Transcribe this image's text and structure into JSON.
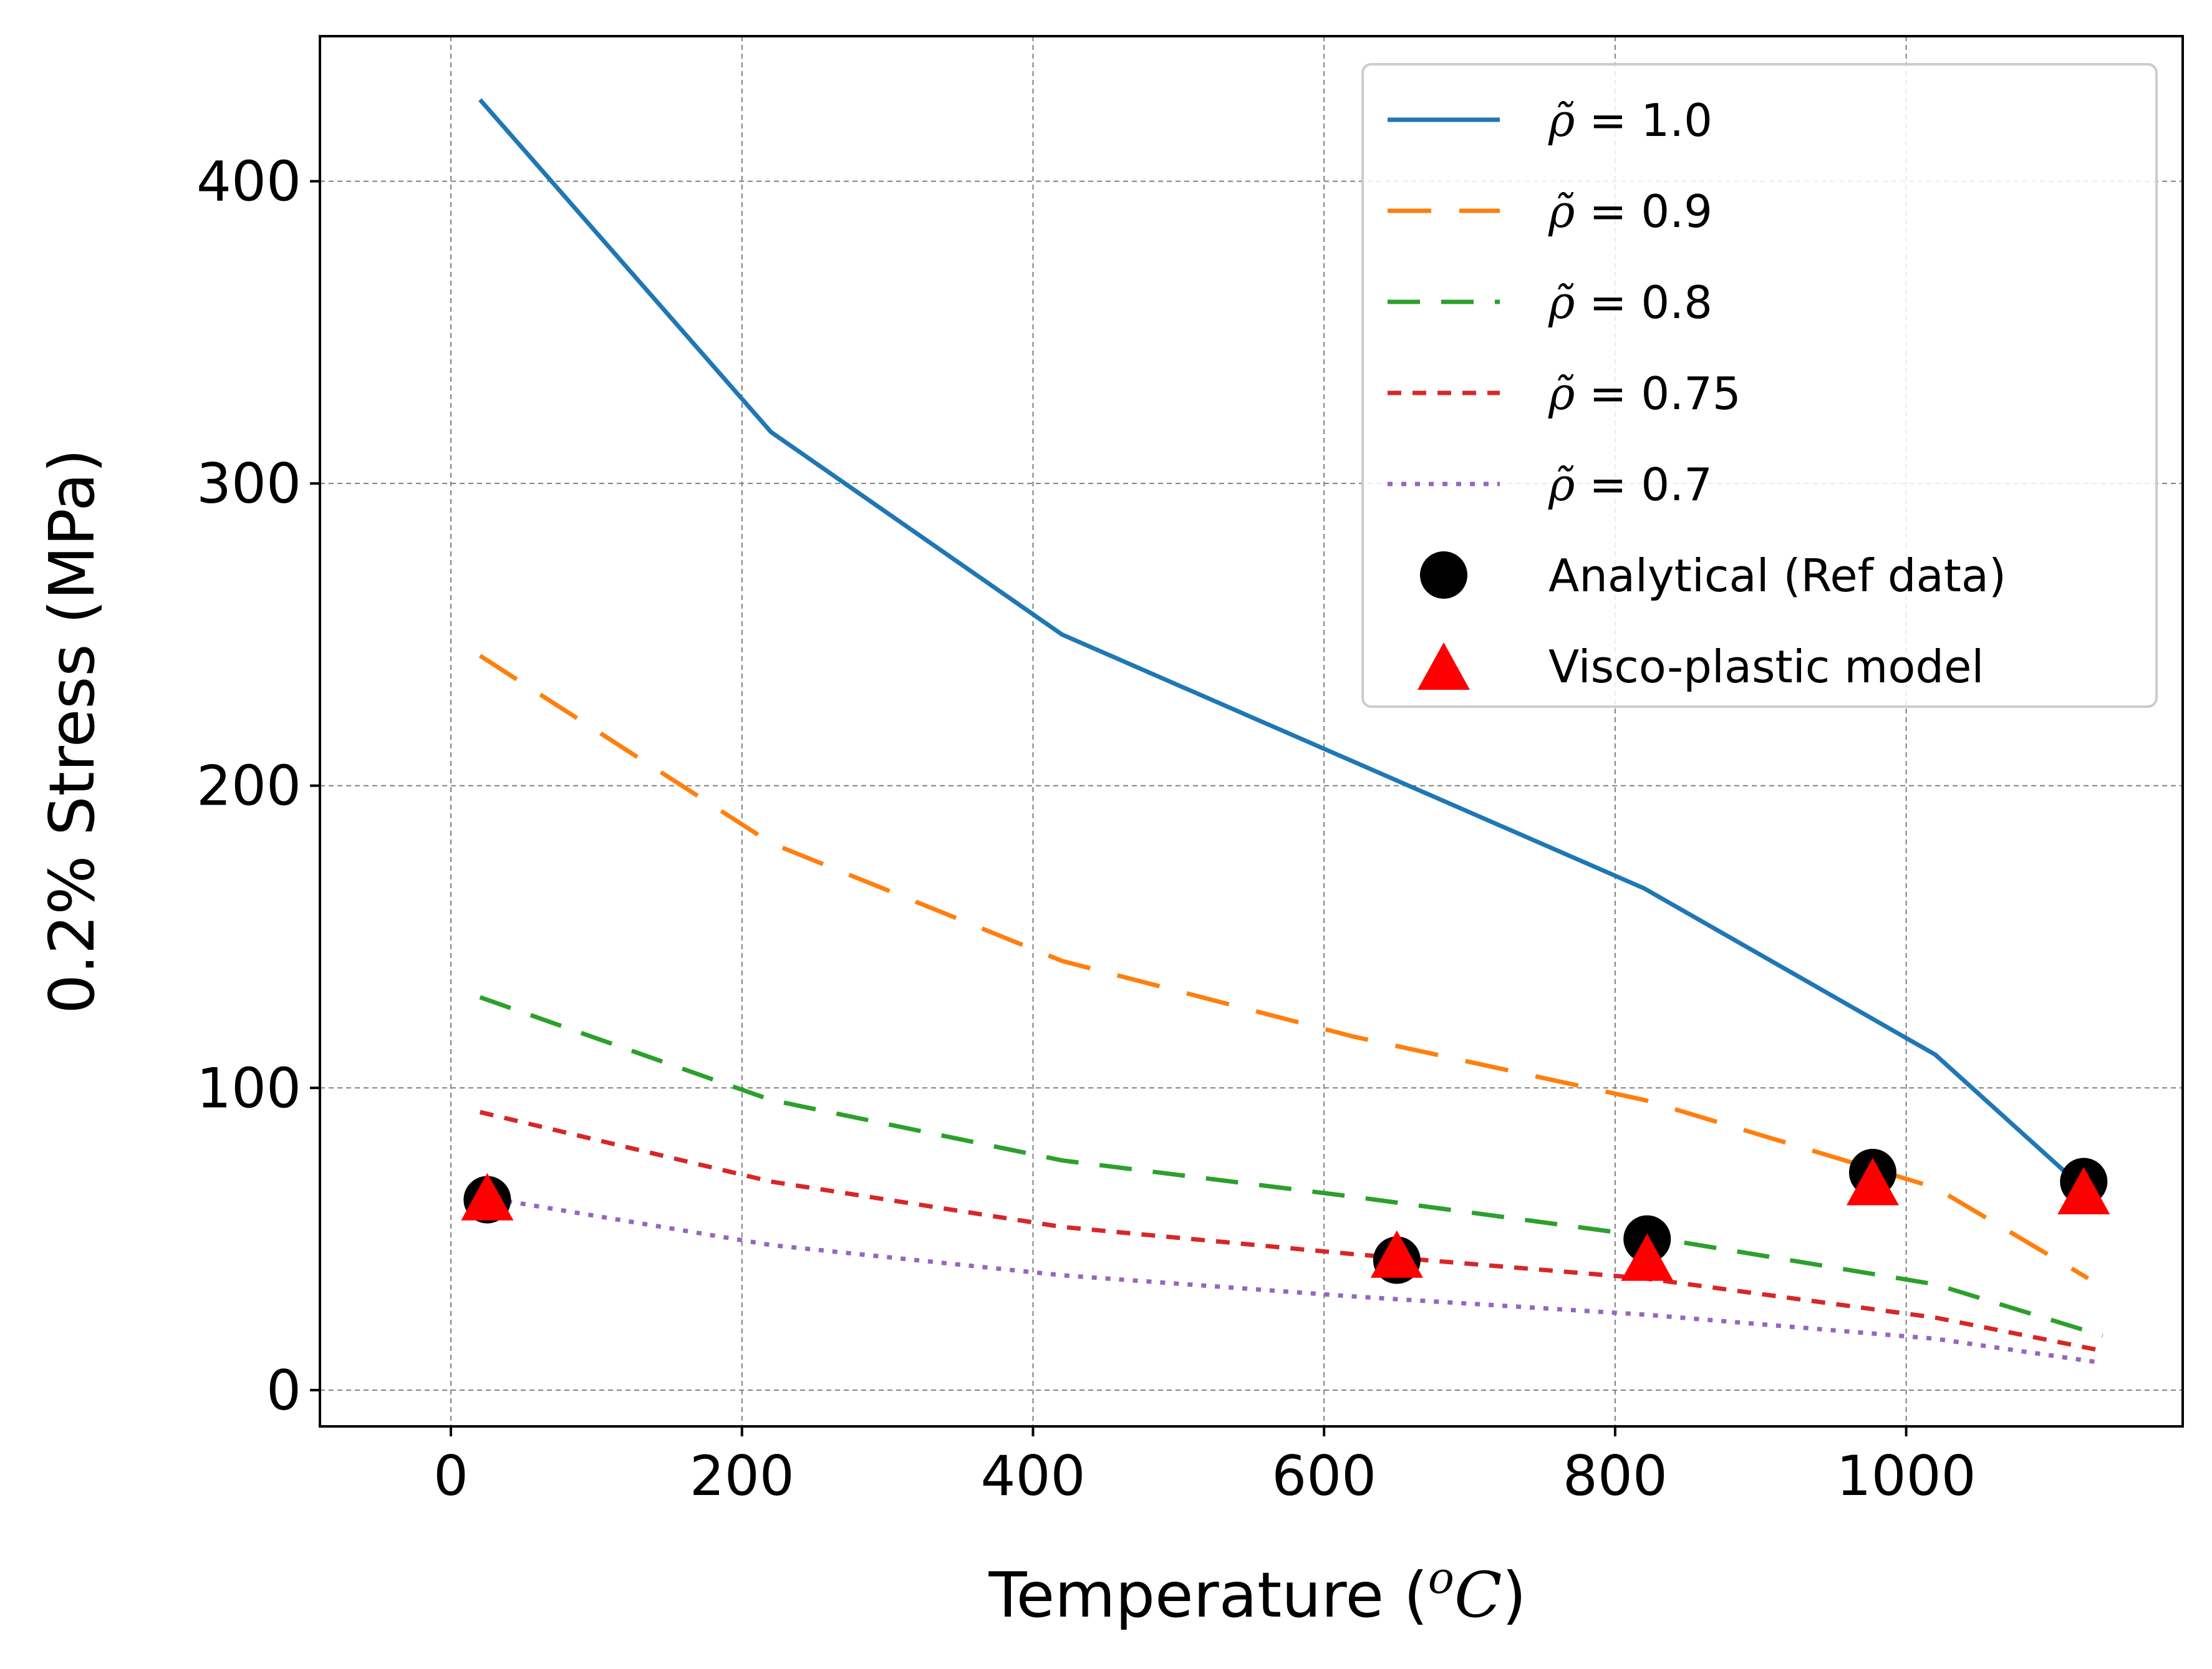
{
  "chart_data": {
    "type": "line",
    "title": "",
    "xlabel": "Temperature (",
    "xlabel_math": "oC",
    "xlabel_close": ")",
    "ylabel": "0.2% Stress (MPa)",
    "xlim": [
      -90,
      1190
    ],
    "ylim": [
      -12,
      448
    ],
    "xticks": [
      0,
      200,
      400,
      600,
      800,
      1000
    ],
    "yticks": [
      0,
      100,
      200,
      300,
      400
    ],
    "grid": true,
    "legend_position": "top-right",
    "series": [
      {
        "name": "ρ̃ = 1.0",
        "symbol": "ρ̃",
        "value_text": " = 1.0",
        "style": "solid",
        "color": "#1f77b4",
        "x": [
          20,
          220,
          420,
          620,
          820,
          1020,
          1135
        ],
        "y": [
          427,
          317,
          250,
          208,
          166,
          111,
          61
        ]
      },
      {
        "name": "ρ̃ = 0.9",
        "symbol": "ρ̃",
        "value_text": " = 0.9",
        "style": "dashdot",
        "color": "#ff7f0e",
        "x": [
          20,
          220,
          420,
          620,
          820,
          1020,
          1125
        ],
        "y": [
          243,
          181,
          142,
          117,
          96,
          67,
          37
        ]
      },
      {
        "name": "ρ̃ = 0.8",
        "symbol": "ρ̃",
        "value_text": " = 0.8",
        "style": "dashed",
        "color": "#2ca02c",
        "x": [
          20,
          220,
          420,
          620,
          820,
          1020,
          1135
        ],
        "y": [
          130,
          96,
          76,
          64,
          51,
          35,
          18
        ]
      },
      {
        "name": "ρ̃ = 0.75",
        "symbol": "ρ̃",
        "value_text": " = 0.75",
        "style": "shortdash",
        "color": "#d62728",
        "x": [
          20,
          220,
          420,
          620,
          820,
          1020,
          1135
        ],
        "y": [
          92,
          69,
          54,
          45,
          37,
          24,
          13
        ]
      },
      {
        "name": "ρ̃ = 0.7",
        "symbol": "ρ̃",
        "value_text": " = 0.7",
        "style": "dotted",
        "color": "#9467bd",
        "x": [
          20,
          220,
          420,
          620,
          820,
          1020,
          1135
        ],
        "y": [
          64,
          48,
          38,
          31,
          25,
          17,
          9
        ]
      }
    ],
    "scatter": [
      {
        "name": "Analytical (Ref data)",
        "marker": "circle",
        "color": "#000000",
        "x": [
          25,
          650,
          822,
          977,
          1122
        ],
        "y": [
          63,
          43,
          50,
          72,
          69
        ]
      },
      {
        "name": "Visco-plastic model",
        "marker": "triangle",
        "color": "#ff0000",
        "x": [
          25,
          650,
          822,
          977,
          1122
        ],
        "y": [
          64,
          45,
          44,
          69,
          66
        ]
      }
    ]
  }
}
